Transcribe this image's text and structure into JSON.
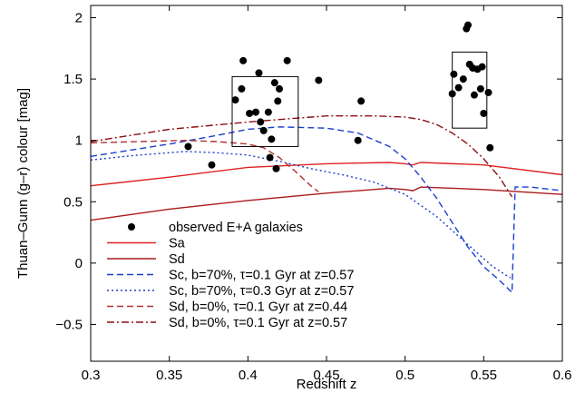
{
  "chart_data": {
    "type": "line",
    "xlabel": "Redshift z",
    "ylabel": "Thuan–Gunn (g–r) colour [mag]",
    "xlim": [
      0.3,
      0.6
    ],
    "ylim": [
      -0.8,
      2.1
    ],
    "xticks": [
      "0.3",
      "0.35",
      "0.4",
      "0.45",
      "0.5",
      "0.55",
      "0.6"
    ],
    "yticks": [
      "−0.5",
      "0",
      "0.5",
      "1",
      "1.5",
      "2"
    ],
    "xtick_values": [
      0.3,
      0.35,
      0.4,
      0.45,
      0.5,
      0.55,
      0.6
    ],
    "ytick_values": [
      -0.5,
      0,
      0.5,
      1,
      1.5,
      2
    ],
    "grid": false,
    "legend_position": "bottom-left",
    "legend": [
      {
        "text": "observed E+A galaxies",
        "style": "points",
        "color": "#000000"
      },
      {
        "text": "Sa",
        "style": "solid",
        "color": "#dd2222"
      },
      {
        "text": "Sd",
        "style": "solid",
        "color": "#aa1a1a"
      },
      {
        "text": "Sc, b=70%, τ=0.1 Gyr at z=0.57",
        "style": "dashed",
        "color": "#1a3fcc"
      },
      {
        "text": "Sc, b=70%, τ=0.3 Gyr at z=0.57",
        "style": "dotted",
        "color": "#1a3fcc"
      },
      {
        "text": "Sd, b=0%, τ=0.1 Gyr at z=0.44",
        "style": "dashed",
        "color": "#b03030"
      },
      {
        "text": "Sd, b=0%, τ=0.1 Gyr at z=0.57",
        "style": "dashdot",
        "color": "#8b1010"
      }
    ],
    "boxes": [
      {
        "x": [
          0.39,
          0.432
        ],
        "y": [
          0.95,
          1.52
        ]
      },
      {
        "x": [
          0.53,
          0.552
        ],
        "y": [
          1.1,
          1.72
        ]
      }
    ],
    "points": [
      [
        0.362,
        0.95
      ],
      [
        0.377,
        0.8
      ],
      [
        0.392,
        1.33
      ],
      [
        0.396,
        1.42
      ],
      [
        0.397,
        1.65
      ],
      [
        0.401,
        1.22
      ],
      [
        0.405,
        1.23
      ],
      [
        0.407,
        1.55
      ],
      [
        0.408,
        1.15
      ],
      [
        0.41,
        1.08
      ],
      [
        0.413,
        1.23
      ],
      [
        0.414,
        0.86
      ],
      [
        0.415,
        1.01
      ],
      [
        0.417,
        1.47
      ],
      [
        0.418,
        0.77
      ],
      [
        0.419,
        1.32
      ],
      [
        0.42,
        1.42
      ],
      [
        0.425,
        1.65
      ],
      [
        0.445,
        1.49
      ],
      [
        0.47,
        1.0
      ],
      [
        0.472,
        1.32
      ],
      [
        0.53,
        1.38
      ],
      [
        0.531,
        1.54
      ],
      [
        0.534,
        1.43
      ],
      [
        0.537,
        1.5
      ],
      [
        0.539,
        1.91
      ],
      [
        0.54,
        1.94
      ],
      [
        0.541,
        1.62
      ],
      [
        0.543,
        1.59
      ],
      [
        0.544,
        1.37
      ],
      [
        0.546,
        1.58
      ],
      [
        0.548,
        1.42
      ],
      [
        0.549,
        1.6
      ],
      [
        0.55,
        1.22
      ],
      [
        0.553,
        1.39
      ],
      [
        0.554,
        0.94
      ]
    ],
    "series": [
      {
        "name": "Sa",
        "style": "solid",
        "color": "#dd2222",
        "x": [
          0.3,
          0.35,
          0.4,
          0.45,
          0.49,
          0.5,
          0.505,
          0.51,
          0.55,
          0.6
        ],
        "y": [
          0.63,
          0.7,
          0.78,
          0.81,
          0.82,
          0.81,
          0.8,
          0.82,
          0.8,
          0.72
        ]
      },
      {
        "name": "Sd",
        "style": "solid",
        "color": "#aa1a1a",
        "x": [
          0.3,
          0.35,
          0.4,
          0.45,
          0.49,
          0.5,
          0.505,
          0.51,
          0.55,
          0.6
        ],
        "y": [
          0.35,
          0.44,
          0.51,
          0.57,
          0.61,
          0.6,
          0.59,
          0.62,
          0.6,
          0.56
        ]
      },
      {
        "name": "Sc, b=70%, τ=0.1 Gyr at z=0.57",
        "style": "dashed",
        "color": "#1a3fcc",
        "x": [
          0.3,
          0.35,
          0.38,
          0.4,
          0.42,
          0.45,
          0.47,
          0.49,
          0.5,
          0.51,
          0.52,
          0.53,
          0.54,
          0.55,
          0.56,
          0.568,
          0.57,
          0.58,
          0.6
        ],
        "y": [
          0.87,
          0.97,
          1.04,
          1.09,
          1.11,
          1.1,
          1.06,
          0.95,
          0.85,
          0.7,
          0.53,
          0.33,
          0.13,
          -0.03,
          -0.14,
          -0.24,
          0.62,
          0.62,
          0.59
        ]
      },
      {
        "name": "Sc, b=70%, τ=0.3 Gyr at z=0.57",
        "style": "dotted",
        "color": "#1a3fcc",
        "x": [
          0.3,
          0.33,
          0.36,
          0.38,
          0.4,
          0.42,
          0.44,
          0.46,
          0.48,
          0.5,
          0.52,
          0.54,
          0.555,
          0.563,
          0.567
        ],
        "y": [
          0.84,
          0.88,
          0.91,
          0.9,
          0.88,
          0.83,
          0.77,
          0.72,
          0.66,
          0.56,
          0.38,
          0.15,
          -0.02,
          -0.09,
          -0.12
        ]
      },
      {
        "name": "Sd, b=0%, τ=0.1 Gyr at z=0.44",
        "style": "dashed",
        "color": "#b03030",
        "x": [
          0.3,
          0.33,
          0.36,
          0.38,
          0.4,
          0.41,
          0.42,
          0.43,
          0.44,
          0.445
        ],
        "y": [
          0.98,
          0.99,
          1.0,
          0.99,
          0.97,
          0.94,
          0.86,
          0.75,
          0.63,
          0.58
        ]
      },
      {
        "name": "Sd, b=0%, τ=0.1 Gyr at z=0.57",
        "style": "dashdot",
        "color": "#8b1010",
        "x": [
          0.3,
          0.35,
          0.4,
          0.45,
          0.48,
          0.5,
          0.51,
          0.52,
          0.53,
          0.54,
          0.55,
          0.56,
          0.565,
          0.568
        ],
        "y": [
          0.99,
          1.09,
          1.15,
          1.2,
          1.2,
          1.19,
          1.17,
          1.13,
          1.06,
          0.97,
          0.85,
          0.7,
          0.6,
          0.54
        ]
      }
    ]
  }
}
